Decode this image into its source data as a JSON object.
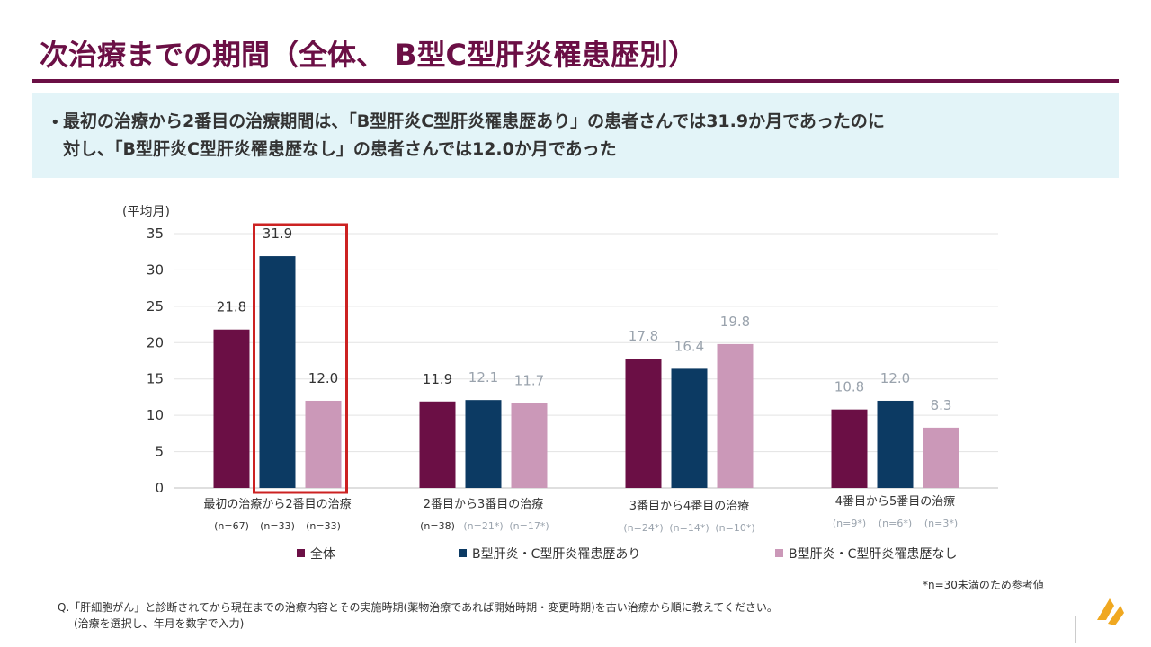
{
  "page": {
    "title": "次治療までの期間（全体、 B型C型肝炎罹患歴別）",
    "summary_bullet": "•",
    "summary_line1": "最初の治療から2番目の治療期間は、「B型肝炎C型肝炎罹患歴あり」の患者さんでは31.9か月であったのに",
    "summary_line2": "対し、「B型肝炎C型肝炎罹患歴なし」の患者さんでは12.0か月であった",
    "note_reference": "*n=30未満のため参考値",
    "question_line1": "Q.「肝細胞がん」と診断されてから現在までの治療内容とその実施時期(薬物治療であれば開始時期・変更時期)を古い治療から順に教えてください。",
    "question_line2": "(治療を選択し、年月を数字で入力)"
  },
  "colors": {
    "series": [
      "#6b0f45",
      "#0c3a63",
      "#cb98b8"
    ],
    "highlight": "#cc2222",
    "label_normal": "#333333",
    "label_muted": "#9aa3ad",
    "title": "#6b0f45",
    "logo": "#f0a820"
  },
  "chart_data": {
    "type": "bar",
    "ylabel": "(平均月)",
    "ylim": [
      0,
      35
    ],
    "yticks": [
      "0",
      "5",
      "10",
      "15",
      "20",
      "25",
      "30",
      "35"
    ],
    "grid": true,
    "legend_position": "bottom",
    "categories": [
      "最初の治療から2番目の治療",
      "2番目から3番目の治療",
      "3番目から4番目の治療",
      "4番目から5番目の治療"
    ],
    "series": [
      {
        "name": "全体",
        "values": [
          21.8,
          11.9,
          17.8,
          10.8
        ],
        "labels": [
          "21.8",
          "11.9",
          "17.8",
          "10.8"
        ],
        "n": [
          "(n=67)",
          "(n=38)",
          "(n=24*)",
          "(n=9*)"
        ],
        "reference": [
          false,
          false,
          true,
          true
        ]
      },
      {
        "name": "B型肝炎・C型肝炎罹患歴あり",
        "values": [
          31.9,
          12.1,
          16.4,
          12.0
        ],
        "labels": [
          "31.9",
          "12.1",
          "16.4",
          "12.0"
        ],
        "n": [
          "(n=33)",
          "(n=21*)",
          "(n=14*)",
          "(n=6*)"
        ],
        "reference": [
          false,
          true,
          true,
          true
        ]
      },
      {
        "name": "B型肝炎・C型肝炎罹患歴なし",
        "values": [
          12.0,
          11.7,
          19.8,
          8.3
        ],
        "labels": [
          "12.0",
          "11.7",
          "19.8",
          "8.3"
        ],
        "n": [
          "(n=33)",
          "(n=17*)",
          "(n=10*)",
          "(n=3*)"
        ],
        "reference": [
          false,
          true,
          true,
          true
        ]
      }
    ],
    "highlighted": {
      "category_index": 0,
      "series_indices": [
        1,
        2
      ]
    }
  }
}
